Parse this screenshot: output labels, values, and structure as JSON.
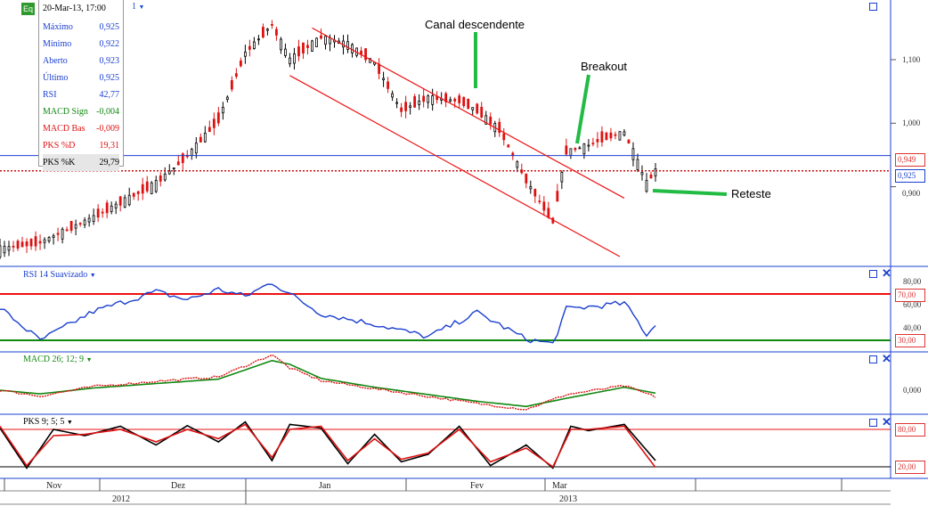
{
  "toolbar": {
    "eq_label": "Eq",
    "symbol_tail": "1"
  },
  "info_box": {
    "timestamp": "20-Mar-13, 17:00",
    "rows": [
      {
        "label": "Máximo",
        "value": "0,925",
        "color": "#1a3fd0"
      },
      {
        "label": "Mínimo",
        "value": "0,922",
        "color": "#1a3fd0"
      },
      {
        "label": "Aberto",
        "value": "0,923",
        "color": "#1a3fd0"
      },
      {
        "label": "Último",
        "value": "0,925",
        "color": "#1a3fd0"
      },
      {
        "label": "RSI",
        "value": "42,77",
        "color": "#1a3fd0"
      },
      {
        "label": "MACD Sign",
        "value": "-0,004",
        "color": "#118811"
      },
      {
        "label": "MACD Bas",
        "value": "-0,009",
        "color": "#dd1111"
      },
      {
        "label": "PKS %D",
        "value": "19,31",
        "color": "#dd1111"
      },
      {
        "label": "PKS %K",
        "value": "29,79",
        "color": "#000000"
      }
    ]
  },
  "annotations": {
    "canal": "Canal descendente",
    "breakout": "Breakout",
    "reteste": "Reteste"
  },
  "price_axis": {
    "ticks": [
      "1,100",
      "1,000",
      "0,900"
    ],
    "badge_resistance": "0,949",
    "badge_last": "0,925"
  },
  "panels": {
    "rsi_label": "RSI 14 Suavizado",
    "rsi_ticks": [
      "80,00",
      "60,00",
      "40,00"
    ],
    "rsi_upper": "70,00",
    "rsi_lower": "30,00",
    "macd_label": "MACD 26; 12; 9",
    "macd_tick": "0,000",
    "pks_label": "PKS 9; 5; 5",
    "pks_upper": "80,00",
    "pks_lower": "20,00"
  },
  "time_axis": {
    "months": [
      "Nov",
      "Dez",
      "Jan",
      "Fev",
      "Mar"
    ],
    "years": [
      "2012",
      "2013"
    ]
  },
  "colors": {
    "up": "#000000",
    "down": "#dd1111",
    "channel": "#ee1111",
    "breakout_arrow": "#22bb44",
    "axis_blue": "#1a3fd0",
    "rsi_line": "#1a3fd0",
    "macd_base": "#dd1111",
    "macd_signal": "#118811",
    "pks_k": "#000000",
    "pks_d": "#dd1111"
  },
  "chart_data": {
    "type": "candlestick",
    "y_ticks": [
      0.9,
      1.0,
      1.1
    ],
    "ohlc_anchors": {
      "dates": [
        "2012-10-24",
        "2012-11-02",
        "2012-11-14",
        "2012-11-28",
        "2012-12-05",
        "2012-12-12",
        "2012-12-18",
        "2012-12-24",
        "2012-12-28",
        "2013-01-04",
        "2013-01-10",
        "2013-01-16",
        "2013-01-22",
        "2013-01-28",
        "2013-02-04",
        "2013-02-08",
        "2013-02-13",
        "2013-02-19",
        "2013-02-25",
        "2013-02-28",
        "2013-03-05",
        "2013-03-08",
        "2013-03-13",
        "2013-03-15",
        "2013-03-18",
        "2013-03-20"
      ],
      "close": [
        0.802,
        0.812,
        0.852,
        0.905,
        0.948,
        1.005,
        1.11,
        1.155,
        1.1,
        1.135,
        1.125,
        1.095,
        1.02,
        1.04,
        1.035,
        1.02,
        0.99,
        0.91,
        0.845,
        0.955,
        0.965,
        0.975,
        0.985,
        0.955,
        0.905,
        0.925
      ]
    },
    "resistance_line": 0.949,
    "last_price": 0.925,
    "channel": {
      "upper": [
        [
          "2013-01-02",
          1.15
        ],
        [
          "2013-03-13",
          0.882
        ]
      ],
      "lower": [
        [
          "2012-12-28",
          1.075
        ],
        [
          "2013-03-12",
          0.79
        ]
      ]
    },
    "rsi": {
      "name": "RSI 14 Suavizado",
      "levels": [
        70,
        30
      ],
      "ylim": [
        20,
        90
      ],
      "anchors": {
        "dates": [
          "2012-10-24",
          "2012-11-02",
          "2012-11-14",
          "2012-11-28",
          "2012-12-05",
          "2012-12-12",
          "2012-12-18",
          "2012-12-24",
          "2012-12-28",
          "2013-01-04",
          "2013-01-16",
          "2013-01-28",
          "2013-02-08",
          "2013-02-19",
          "2013-02-25",
          "2013-02-28",
          "2013-03-08",
          "2013-03-13",
          "2013-03-15",
          "2013-03-18",
          "2013-03-20"
        ],
        "values": [
          58,
          30,
          55,
          72,
          65,
          74,
          68,
          80,
          70,
          53,
          44,
          33,
          54,
          31,
          27,
          57,
          60,
          62,
          52,
          35,
          43
        ]
      }
    },
    "macd": {
      "name": "MACD 26; 12; 9",
      "series": [
        "MACD Bas",
        "MACD Sign"
      ],
      "anchors": {
        "dates": [
          "2012-10-24",
          "2012-11-02",
          "2012-11-14",
          "2012-11-28",
          "2012-12-12",
          "2012-12-24",
          "2012-12-28",
          "2013-01-04",
          "2013-01-16",
          "2013-02-08",
          "2013-02-19",
          "2013-02-28",
          "2013-03-13",
          "2013-03-20"
        ],
        "base": [
          0.0,
          -0.008,
          0.005,
          0.012,
          0.018,
          0.048,
          0.03,
          0.013,
          0.002,
          -0.018,
          -0.026,
          -0.006,
          0.006,
          -0.009
        ],
        "signal": [
          0.0,
          -0.005,
          0.003,
          0.009,
          0.015,
          0.04,
          0.035,
          0.016,
          0.004,
          -0.015,
          -0.022,
          -0.011,
          0.004,
          -0.004
        ]
      }
    },
    "pks": {
      "name": "PKS 9; 5; 5",
      "series": [
        "PKS %K",
        "PKS %D"
      ],
      "levels": [
        80,
        20
      ],
      "anchors": {
        "dates": [
          "2012-10-24",
          "2012-10-30",
          "2012-11-05",
          "2012-11-12",
          "2012-11-20",
          "2012-11-28",
          "2012-12-05",
          "2012-12-12",
          "2012-12-18",
          "2012-12-24",
          "2012-12-28",
          "2013-01-04",
          "2013-01-10",
          "2013-01-16",
          "2013-01-22",
          "2013-01-28",
          "2013-02-04",
          "2013-02-11",
          "2013-02-19",
          "2013-02-25",
          "2013-03-01",
          "2013-03-05",
          "2013-03-13",
          "2013-03-20"
        ],
        "k": [
          82,
          18,
          80,
          70,
          85,
          55,
          86,
          60,
          92,
          30,
          88,
          82,
          25,
          72,
          28,
          40,
          85,
          22,
          55,
          18,
          85,
          78,
          88,
          30
        ],
        "d": [
          85,
          22,
          70,
          72,
          80,
          60,
          80,
          65,
          88,
          35,
          80,
          85,
          30,
          65,
          32,
          42,
          80,
          28,
          50,
          20,
          80,
          80,
          85,
          19
        ]
      }
    },
    "x_start": "2012-10-24",
    "x_end": "2013-03-20"
  }
}
